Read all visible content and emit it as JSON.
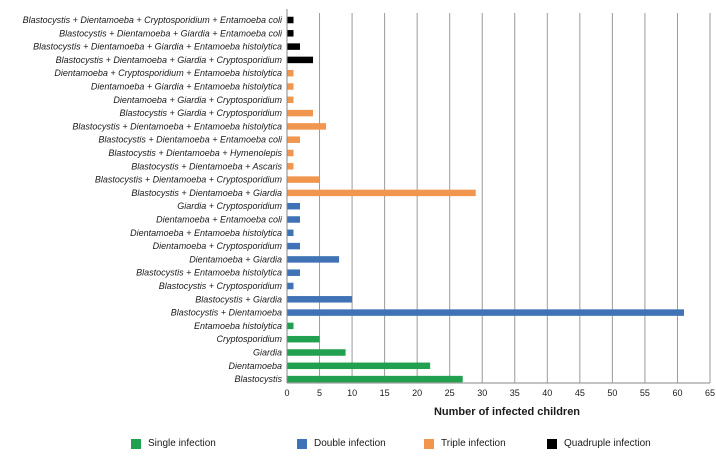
{
  "chart_data": {
    "type": "bar",
    "orientation": "horizontal",
    "xlabel": "Number of infected children",
    "xlim": [
      0,
      65
    ],
    "xticks": [
      0,
      5,
      10,
      15,
      20,
      25,
      30,
      35,
      40,
      45,
      50,
      55,
      60,
      65
    ],
    "grid": true,
    "legend_position": "bottom",
    "groups": [
      {
        "name": "Single infection",
        "color": "#21a04f"
      },
      {
        "name": "Double infection",
        "color": "#3f73b6"
      },
      {
        "name": "Triple infection",
        "color": "#f0964f"
      },
      {
        "name": "Quadruple infection",
        "color": "#000000"
      }
    ],
    "categories": [
      {
        "label": "Blastocystis + Dientamoeba + Cryptosporidium + Entamoeba  coli",
        "value": 1,
        "group": 3
      },
      {
        "label": "Blastocystis + Dientamoeba + Giardia + Entamoeba coli",
        "value": 1,
        "group": 3
      },
      {
        "label": "Blastocystis + Dientamoeba + Giardia + Entamoeba histolytica",
        "value": 2,
        "group": 3
      },
      {
        "label": "Blastocystis + Dientamoeba + Giardia + Cryptosporidium",
        "value": 4,
        "group": 3
      },
      {
        "label": "Dientamoeba + Cryptosporidium + Entamoeba histolytica",
        "value": 1,
        "group": 2
      },
      {
        "label": "Dientamoeba + Giardia + Entamoeba histolytica",
        "value": 1,
        "group": 2
      },
      {
        "label": "Dientamoeba + Giardia + Cryptosporidium",
        "value": 1,
        "group": 2
      },
      {
        "label": "Blastocystis + Giardia + Cryptosporidium",
        "value": 4,
        "group": 2
      },
      {
        "label": "Blastocystis + Dientamoeba + Entamoeba histolytica",
        "value": 6,
        "group": 2
      },
      {
        "label": "Blastocystis + Dientamoeba + Entamoeba coli",
        "value": 2,
        "group": 2
      },
      {
        "label": "Blastocystis + Dientamoeba + Hymenolepis",
        "value": 1,
        "group": 2
      },
      {
        "label": "Blastocystis + Dientamoeba + Ascaris",
        "value": 1,
        "group": 2
      },
      {
        "label": "Blastocystis + Dientamoeba + Cryptosporidium",
        "value": 5,
        "group": 2
      },
      {
        "label": "Blastocystis + Dientamoeba + Giardia",
        "value": 29,
        "group": 2
      },
      {
        "label": "Giardia + Cryptosporidium",
        "value": 2,
        "group": 1
      },
      {
        "label": "Dientamoeba + Entamoeba coli",
        "value": 2,
        "group": 1
      },
      {
        "label": "Dientamoeba + Entamoeba histolytica",
        "value": 1,
        "group": 1
      },
      {
        "label": "Dientamoeba + Cryptosporidium",
        "value": 2,
        "group": 1
      },
      {
        "label": "Dientamoeba + Giardia",
        "value": 8,
        "group": 1
      },
      {
        "label": "Blastocystis + Entamoeba histolytica",
        "value": 2,
        "group": 1
      },
      {
        "label": "Blastocystis + Cryptosporidium",
        "value": 1,
        "group": 1
      },
      {
        "label": "Blastocystis + Giardia",
        "value": 10,
        "group": 1
      },
      {
        "label": "Blastocystis + Dientamoeba",
        "value": 61,
        "group": 1
      },
      {
        "label": "Entamoeba histolytica",
        "value": 1,
        "group": 0
      },
      {
        "label": "Cryptosporidium",
        "value": 5,
        "group": 0
      },
      {
        "label": "Giardia",
        "value": 9,
        "group": 0
      },
      {
        "label": "Dientamoeba",
        "value": 22,
        "group": 0
      },
      {
        "label": "Blastocystis",
        "value": 27,
        "group": 0
      }
    ]
  }
}
